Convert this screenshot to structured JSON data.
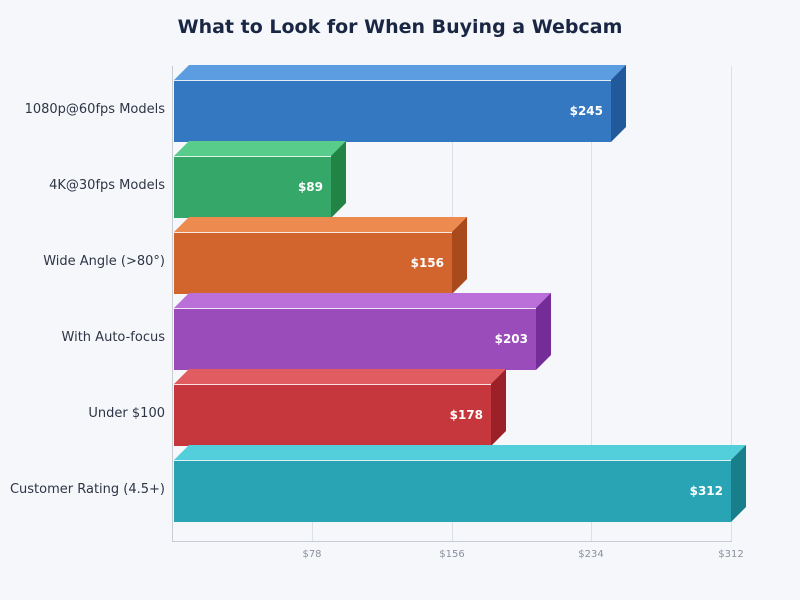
{
  "chart_data": {
    "type": "bar",
    "orientation": "horizontal",
    "style": "3d",
    "title": "What to Look for When Buying a Webcam",
    "xlabel": "",
    "ylabel": "",
    "categories": [
      "1080p@60fps Models",
      "4K@30fps Models",
      "Wide Angle (>80°)",
      "With Auto-focus",
      "Under $100",
      "Customer Rating (4.5+)"
    ],
    "values": [
      245,
      89,
      156,
      203,
      178,
      312
    ],
    "value_labels": [
      "$245",
      "$89",
      "$156",
      "$203",
      "$178",
      "$312"
    ],
    "colors": [
      "#3478c1",
      "#35a869",
      "#d2652d",
      "#9a4cbb",
      "#c5373c",
      "#28a4b4"
    ],
    "top_colors": [
      "#5b9de0",
      "#58cd8b",
      "#ec8a50",
      "#bb6fd8",
      "#e05c60",
      "#52cfda"
    ],
    "side_colors": [
      "#22599a",
      "#218445",
      "#a84a1c",
      "#742c99",
      "#9c2027",
      "#187e8c"
    ],
    "xlim": [
      0,
      312
    ],
    "xticks": [
      78,
      156,
      234,
      312
    ],
    "xtick_labels": [
      "$78",
      "$156",
      "$234",
      "$312"
    ],
    "grid": true,
    "legend": null
  }
}
